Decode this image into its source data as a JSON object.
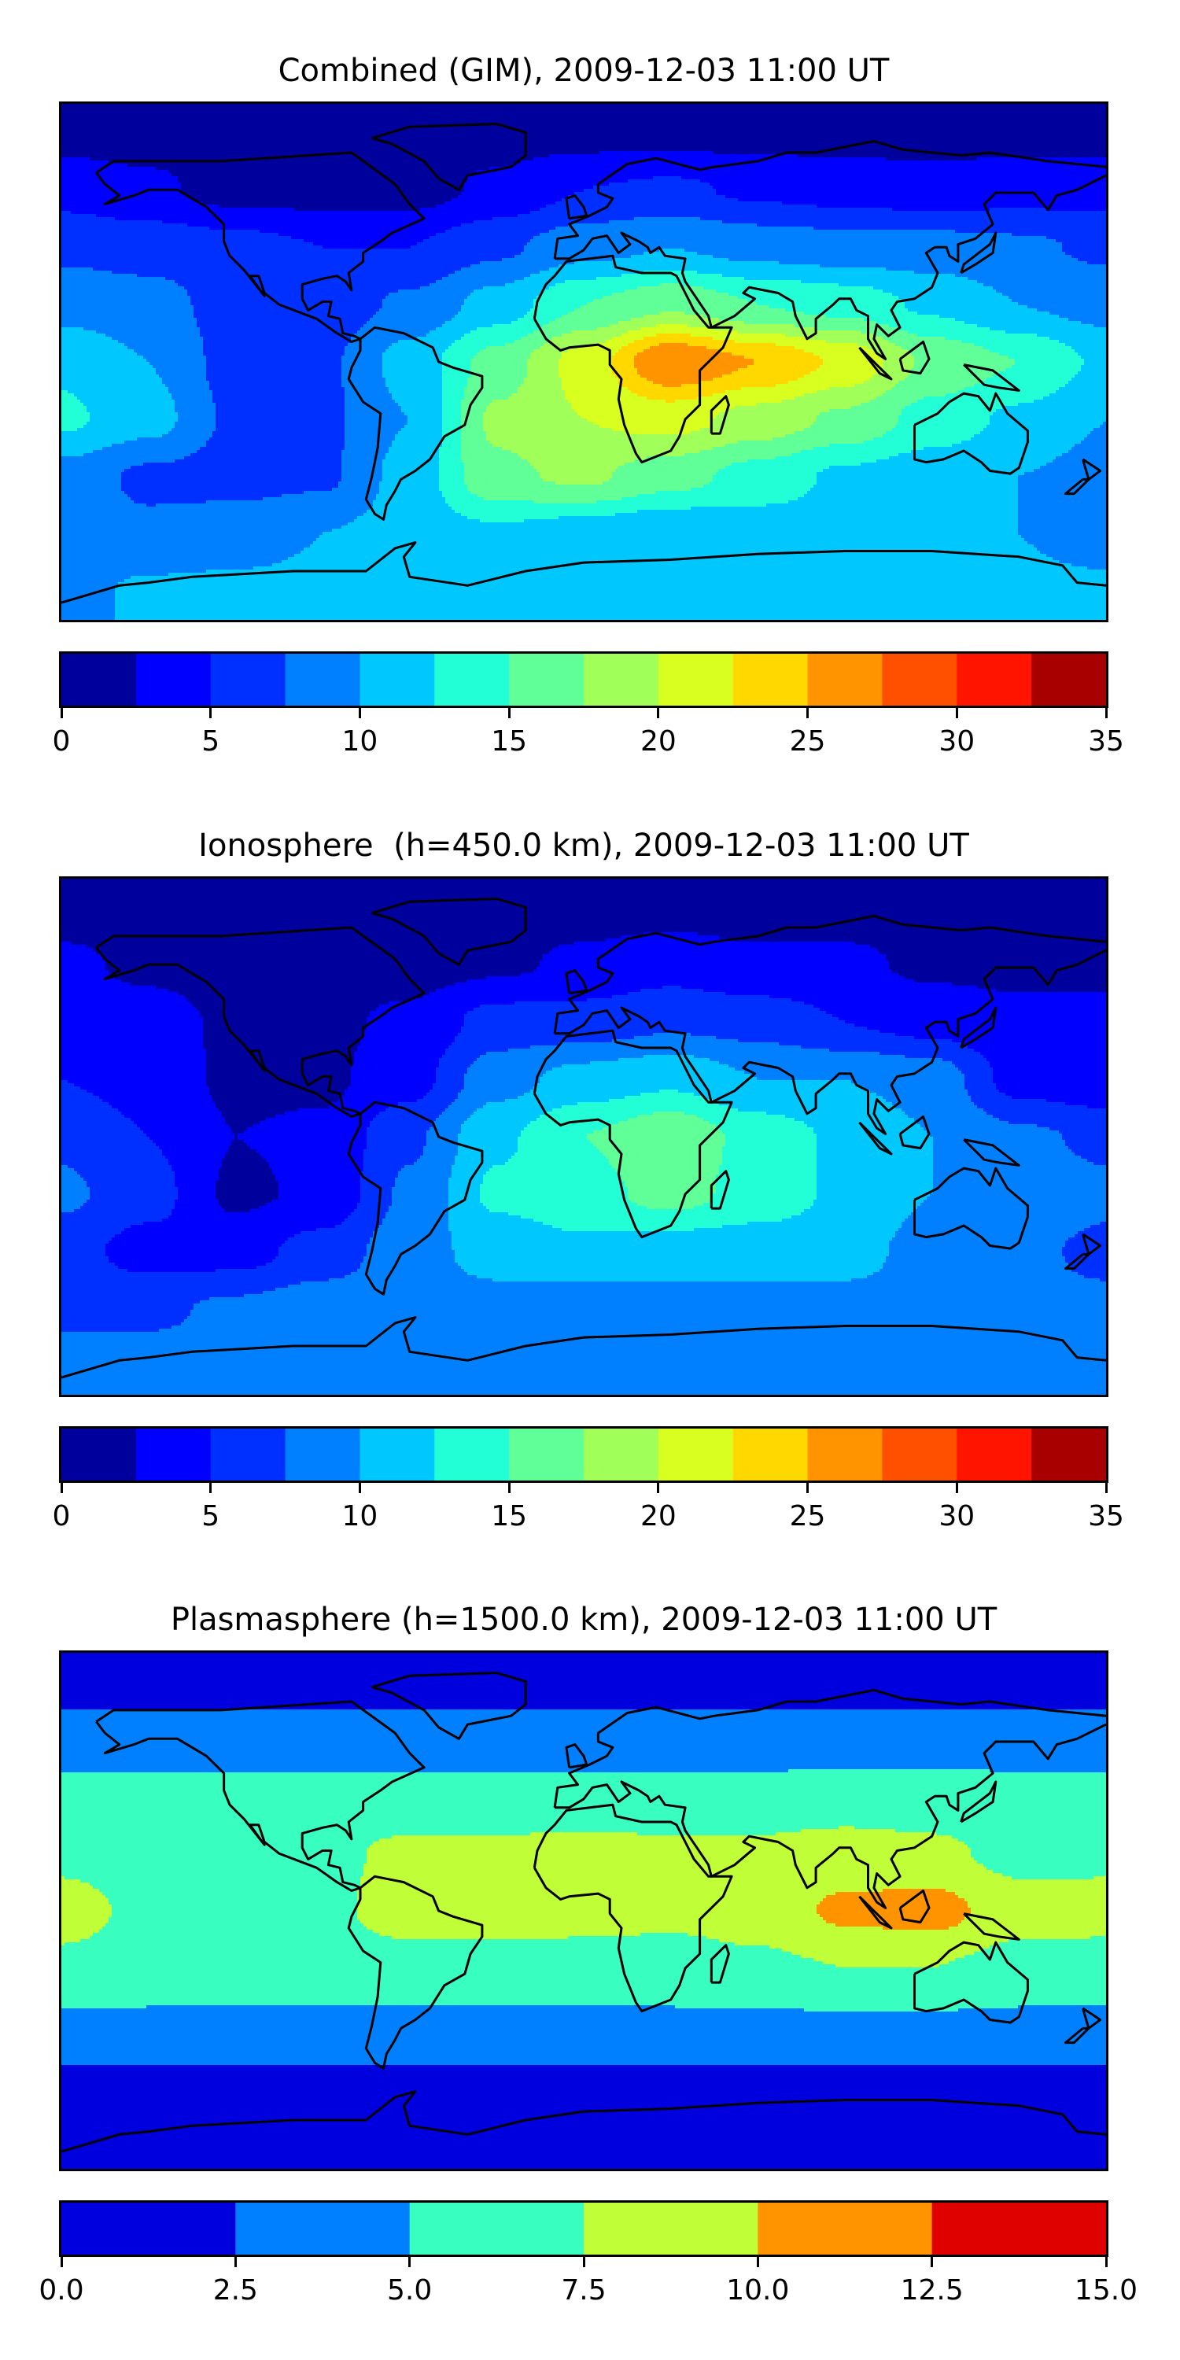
{
  "chart_data": [
    {
      "type": "heatmap",
      "subtype": "filled-contour-map",
      "title": "Combined (GIM), 2009-12-03 11:00 UT",
      "projection": "PlateCarree",
      "lon_range": [
        -180,
        180
      ],
      "lat_range": [
        -90,
        90
      ],
      "levels": [
        0,
        2.5,
        5,
        7.5,
        10,
        12.5,
        15,
        17.5,
        20,
        22.5,
        25,
        27.5,
        30,
        32.5,
        35
      ],
      "colors": [
        "#00009c",
        "#0000ff",
        "#0030ff",
        "#0080ff",
        "#00c8ff",
        "#22ffd6",
        "#60ff98",
        "#a0ff58",
        "#d8ff20",
        "#ffd800",
        "#ff9400",
        "#ff5000",
        "#ff1400",
        "#a80000"
      ],
      "colorbar": {
        "ticks": [
          "0",
          "5",
          "10",
          "15",
          "20",
          "25",
          "30",
          "35"
        ],
        "tick_values": [
          0,
          5,
          10,
          15,
          20,
          25,
          30,
          35
        ]
      },
      "grid_lats": [
        80,
        60,
        40,
        20,
        0,
        -20,
        -40,
        -60,
        -80
      ],
      "grid_lons": [
        -180,
        -150,
        -120,
        -90,
        -60,
        -30,
        0,
        30,
        60,
        90,
        120,
        150,
        180
      ],
      "values": [
        [
          1.5,
          1.5,
          1.5,
          1.5,
          1.5,
          1.5,
          1.5,
          1.5,
          1.5,
          1.5,
          1.5,
          1.5,
          1.5
        ],
        [
          4,
          3,
          1.5,
          1.5,
          1.5,
          3,
          5,
          5.5,
          4.5,
          4,
          3.5,
          4,
          4
        ],
        [
          7,
          6.5,
          6,
          5,
          5,
          7,
          9,
          10,
          9,
          8.5,
          8.5,
          8,
          7
        ],
        [
          9,
          8.5,
          6.5,
          6,
          8,
          11,
          15,
          17,
          15,
          14,
          12,
          10,
          9
        ],
        [
          12,
          10,
          6.5,
          7,
          11,
          16,
          21,
          27.5,
          25,
          22,
          17,
          15,
          12
        ],
        [
          13,
          11,
          7,
          7,
          10,
          18,
          20,
          21,
          19,
          17,
          14,
          12,
          10
        ],
        [
          9,
          7,
          6.5,
          7,
          11,
          17,
          18,
          16,
          14,
          12,
          11,
          10,
          9
        ],
        [
          8,
          8,
          9,
          10,
          11,
          12,
          11,
          10,
          11,
          11.5,
          11,
          10,
          9
        ],
        [
          9,
          10.5,
          10.5,
          10.5,
          10.5,
          10.5,
          10.5,
          10.5,
          10.5,
          10.5,
          10.5,
          10.5,
          10.5
        ]
      ]
    },
    {
      "type": "heatmap",
      "subtype": "filled-contour-map",
      "title": "Ionosphere  (h=450.0 km), 2009-12-03 11:00 UT",
      "projection": "PlateCarree",
      "lon_range": [
        -180,
        180
      ],
      "lat_range": [
        -90,
        90
      ],
      "levels": [
        0,
        2.5,
        5,
        7.5,
        10,
        12.5,
        15,
        17.5,
        20,
        22.5,
        25,
        27.5,
        30,
        32.5,
        35
      ],
      "colors": [
        "#00009c",
        "#0000ff",
        "#0030ff",
        "#0080ff",
        "#00c8ff",
        "#22ffd6",
        "#60ff98",
        "#a0ff58",
        "#d8ff20",
        "#ffd800",
        "#ff9400",
        "#ff5000",
        "#ff1400",
        "#a80000"
      ],
      "colorbar": {
        "ticks": [
          "0",
          "5",
          "10",
          "15",
          "20",
          "25",
          "30",
          "35"
        ],
        "tick_values": [
          0,
          5,
          10,
          15,
          20,
          25,
          30,
          35
        ]
      },
      "grid_lats": [
        80,
        60,
        40,
        20,
        0,
        -20,
        -40,
        -60,
        -80
      ],
      "grid_lons": [
        -180,
        -150,
        -120,
        -90,
        -60,
        -30,
        0,
        30,
        60,
        90,
        120,
        150,
        180
      ],
      "values": [
        [
          1.5,
          1.5,
          1.5,
          1.5,
          1.5,
          1.5,
          1.5,
          1.5,
          1.5,
          1.5,
          1.5,
          1.5,
          1.5
        ],
        [
          3,
          2,
          1.5,
          1.5,
          1.5,
          2,
          3,
          4,
          3,
          3,
          2,
          2,
          2
        ],
        [
          4,
          3.5,
          2,
          2,
          3,
          6,
          6,
          7,
          6.5,
          5,
          4,
          3,
          3
        ],
        [
          5,
          4,
          2,
          2,
          4,
          9,
          11,
          12,
          10,
          10,
          9,
          4,
          3
        ],
        [
          7,
          5,
          2.5,
          3,
          7,
          12,
          15,
          17,
          14,
          12,
          10,
          8,
          7
        ],
        [
          8,
          6,
          2,
          3,
          8,
          13,
          14,
          16,
          14,
          12,
          10,
          9,
          8
        ],
        [
          6,
          4,
          4,
          6,
          9,
          11,
          12,
          11,
          11,
          11,
          9,
          8,
          7
        ],
        [
          7,
          7,
          8,
          9,
          9,
          9,
          8,
          9,
          9,
          9,
          9,
          8,
          8
        ],
        [
          8.5,
          8.5,
          8.5,
          8.5,
          8.5,
          8.5,
          8.5,
          8.5,
          8.5,
          8.5,
          8.5,
          8.5,
          8.5
        ]
      ]
    },
    {
      "type": "heatmap",
      "subtype": "filled-contour-map",
      "title": "Plasmasphere (h=1500.0 km), 2009-12-03 11:00 UT",
      "projection": "PlateCarree",
      "lon_range": [
        -180,
        180
      ],
      "lat_range": [
        -90,
        90
      ],
      "levels": [
        0,
        2.5,
        5,
        7.5,
        10,
        12.5,
        15
      ],
      "colors": [
        "#0000df",
        "#0080ff",
        "#38ffc0",
        "#c0ff38",
        "#ff9400",
        "#df0000"
      ],
      "colorbar": {
        "ticks": [
          "0.0",
          "2.5",
          "5.0",
          "7.5",
          "10.0",
          "12.5",
          "15.0"
        ],
        "tick_values": [
          0,
          2.5,
          5,
          7.5,
          10,
          12.5,
          15
        ]
      },
      "grid_lats": [
        80,
        60,
        40,
        20,
        0,
        -20,
        -40,
        -60,
        -80
      ],
      "grid_lons": [
        -180,
        -150,
        -120,
        -90,
        -60,
        -30,
        0,
        30,
        60,
        90,
        120,
        150,
        180
      ],
      "values": [
        [
          1.5,
          1.5,
          1.5,
          1.5,
          1.5,
          1.5,
          1.5,
          1.5,
          1.5,
          1.5,
          1.5,
          1.5,
          1.5
        ],
        [
          3.5,
          3.5,
          3.5,
          3.5,
          3.5,
          3.5,
          3.5,
          3.5,
          3.5,
          3.5,
          3.5,
          3.5,
          3.5
        ],
        [
          6,
          6,
          6,
          6,
          6,
          6,
          6,
          6,
          6,
          6.2,
          6.2,
          6,
          6
        ],
        [
          7,
          6.5,
          6.5,
          7,
          8,
          8,
          8.2,
          8,
          8,
          8.5,
          8,
          6.8,
          7
        ],
        [
          8.3,
          7,
          6.5,
          7,
          8.5,
          8.5,
          8.3,
          8,
          8.5,
          10.5,
          11,
          8.5,
          8.3
        ],
        [
          7,
          6.5,
          6.5,
          6.5,
          6.5,
          6.5,
          6.5,
          6.5,
          7,
          7.5,
          7.5,
          6.5,
          6.5
        ],
        [
          4.5,
          4.5,
          4.5,
          4.5,
          4.5,
          4.5,
          4.5,
          4.5,
          4.5,
          4.5,
          4.5,
          4.5,
          4.5
        ],
        [
          2,
          2,
          2,
          2,
          2,
          2,
          2,
          2,
          2,
          2,
          2,
          2,
          2
        ],
        [
          1.5,
          1.5,
          1.5,
          1.5,
          1.5,
          1.5,
          1.5,
          1.5,
          1.5,
          1.5,
          1.5,
          1.5,
          1.5
        ]
      ]
    }
  ]
}
